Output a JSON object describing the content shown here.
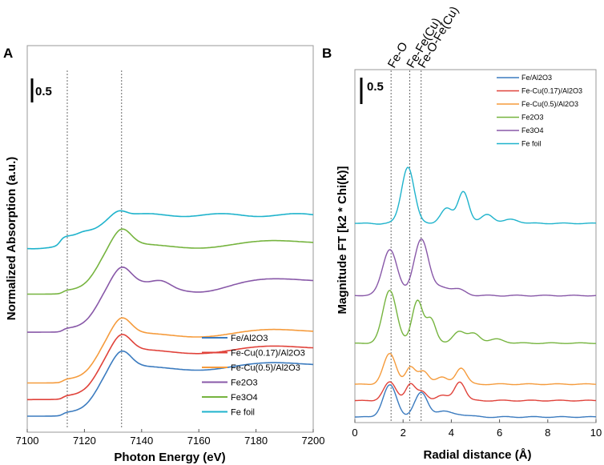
{
  "chart_data": [
    {
      "panel": "A",
      "type": "line",
      "xlabel": "Photon Energy (eV)",
      "ylabel": "Normalized Absorption (a.u.)",
      "xlim": [
        7100,
        7200
      ],
      "x_ticks": [
        "7100",
        "7120",
        "7140",
        "7160",
        "7180",
        "7200"
      ],
      "scale_bar_label": "0.5",
      "vertical_markers_ev": [
        7114,
        7133
      ],
      "legend": [
        "Fe/Al2O3",
        "Fe-Cu(0.17)/Al2O3",
        "Fe-Cu(0.5)/Al2O3",
        "Fe2O3",
        "Fe3O4",
        "Fe foil"
      ],
      "series": [
        {
          "name": "Fe/Al2O3",
          "color": "#3b7bbf",
          "offset": 0.0
        },
        {
          "name": "Fe-Cu(0.17)/Al2O3",
          "color": "#e0423a",
          "offset": 0.34
        },
        {
          "name": "Fe-Cu(0.5)/Al2O3",
          "color": "#f59b3c",
          "offset": 0.68
        },
        {
          "name": "Fe2O3",
          "color": "#8858a8",
          "offset": 1.72
        },
        {
          "name": "Fe3O4",
          "color": "#76b43f",
          "offset": 2.5
        },
        {
          "name": "Fe foil",
          "color": "#1fb3cc",
          "offset": 3.46
        }
      ]
    },
    {
      "panel": "B",
      "type": "line",
      "xlabel": "Radial distance (Å)",
      "ylabel": "Magnitude FT [k2 * Chi(k)]",
      "xlim": [
        0,
        10
      ],
      "x_ticks": [
        "0",
        "2",
        "4",
        "6",
        "8",
        "10"
      ],
      "scale_bar_label": "0.5",
      "vertical_markers_r": [
        1.5,
        2.28,
        2.75
      ],
      "annotations": [
        "Fe-O",
        "Fe-Fe(Cu)",
        "Fe-O-Fe(Cu)"
      ],
      "legend": [
        "Fe/Al2O3",
        "Fe-Cu(0.17)/Al2O3",
        "Fe-Cu(0.5)/Al2O3",
        "Fe2O3",
        "Fe3O4",
        "Fe foil"
      ],
      "series": [
        {
          "name": "Fe/Al2O3",
          "color": "#3b7bbf",
          "offset": 0.0,
          "peaks": [
            [
              1.45,
              0.96,
              0.28
            ],
            [
              2.75,
              0.73,
              0.27
            ],
            [
              3.6,
              0.15,
              0.3
            ],
            [
              4.3,
              0.08,
              0.4
            ]
          ]
        },
        {
          "name": "Fe-Cu(0.17)/Al2O3",
          "color": "#e0423a",
          "offset": 0.5,
          "peaks": [
            [
              1.45,
              0.55,
              0.26
            ],
            [
              2.3,
              0.5,
              0.2
            ],
            [
              2.8,
              0.26,
              0.2
            ],
            [
              3.6,
              0.15,
              0.25
            ],
            [
              4.35,
              0.58,
              0.22
            ]
          ]
        },
        {
          "name": "Fe-Cu(0.5)/Al2O3",
          "color": "#f59b3c",
          "offset": 1.0,
          "peaks": [
            [
              1.45,
              0.92,
              0.26
            ],
            [
              2.3,
              0.5,
              0.2
            ],
            [
              2.85,
              0.4,
              0.22
            ],
            [
              3.6,
              0.2,
              0.25
            ],
            [
              4.4,
              0.5,
              0.22
            ]
          ]
        },
        {
          "name": "Fe2O3",
          "color": "#76b43f",
          "offset": 2.25,
          "peaks": [
            [
              1.45,
              1.62,
              0.28
            ],
            [
              2.6,
              1.3,
              0.22
            ],
            [
              3.15,
              0.72,
              0.2
            ],
            [
              4.3,
              0.35,
              0.25
            ],
            [
              4.95,
              0.3,
              0.25
            ],
            [
              5.9,
              0.12,
              0.3
            ]
          ]
        },
        {
          "name": "Fe3O4",
          "color": "#8858a8",
          "offset": 3.7,
          "peaks": [
            [
              1.45,
              1.42,
              0.3
            ],
            [
              2.75,
              1.73,
              0.3
            ],
            [
              3.6,
              0.25,
              0.3
            ],
            [
              4.3,
              0.18,
              0.3
            ]
          ]
        },
        {
          "name": "Fe foil",
          "color": "#1fb3cc",
          "offset": 5.9,
          "peaks": [
            [
              2.2,
              1.73,
              0.26
            ],
            [
              3.8,
              0.45,
              0.25
            ],
            [
              4.5,
              0.98,
              0.22
            ],
            [
              5.5,
              0.28,
              0.25
            ],
            [
              6.5,
              0.12,
              0.3
            ]
          ]
        }
      ]
    }
  ]
}
